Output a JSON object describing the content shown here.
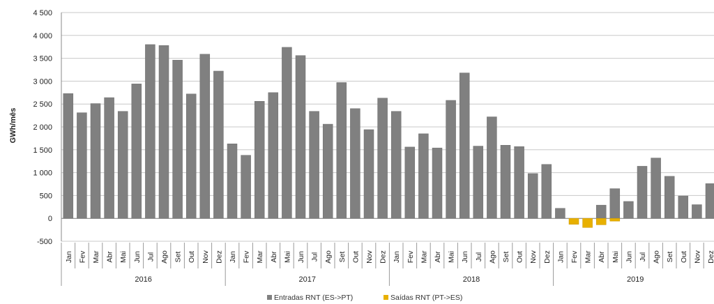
{
  "chart_data": {
    "type": "bar",
    "ylabel": "GWh/mês",
    "ylim": [
      -500,
      4500
    ],
    "yticks": [
      -500,
      0,
      500,
      1000,
      1500,
      2000,
      2500,
      3000,
      3500,
      4000,
      4500
    ],
    "ytick_labels": [
      "-500",
      "0",
      "500",
      "1 000",
      "1 500",
      "2 000",
      "2 500",
      "3 000",
      "3 500",
      "4 000",
      "4 500"
    ],
    "grid": true,
    "legend_position": "bottom",
    "years": [
      "2016",
      "2017",
      "2018",
      "2019"
    ],
    "months": [
      "Jan",
      "Fev",
      "Mar",
      "Abr",
      "Mai",
      "Jun",
      "Jul",
      "Ago",
      "Set",
      "Out",
      "Nov",
      "Dez"
    ],
    "series": [
      {
        "name": "Entradas RNT (ES->PT)",
        "color": "#808080",
        "values": [
          2730,
          2310,
          2510,
          2640,
          2340,
          2940,
          3800,
          3780,
          3460,
          2720,
          3590,
          3220,
          1630,
          1380,
          2560,
          2750,
          3740,
          3560,
          2340,
          2060,
          2970,
          2400,
          1940,
          2630,
          2340,
          1560,
          1850,
          1540,
          2580,
          3180,
          1580,
          2220,
          1600,
          1570,
          980,
          1180,
          220,
          0,
          0,
          290,
          650,
          370,
          1140,
          1320,
          920,
          490,
          300,
          760
        ]
      },
      {
        "name": "Saídas RNT (PT->ES)",
        "color": "#E8B000",
        "values": [
          0,
          0,
          0,
          0,
          0,
          0,
          0,
          0,
          0,
          0,
          0,
          0,
          0,
          0,
          0,
          0,
          0,
          0,
          0,
          0,
          0,
          0,
          0,
          0,
          0,
          0,
          0,
          0,
          0,
          0,
          0,
          0,
          0,
          0,
          0,
          0,
          0,
          -130,
          -200,
          -140,
          -60,
          0,
          0,
          0,
          0,
          0,
          0,
          0
        ]
      }
    ]
  }
}
